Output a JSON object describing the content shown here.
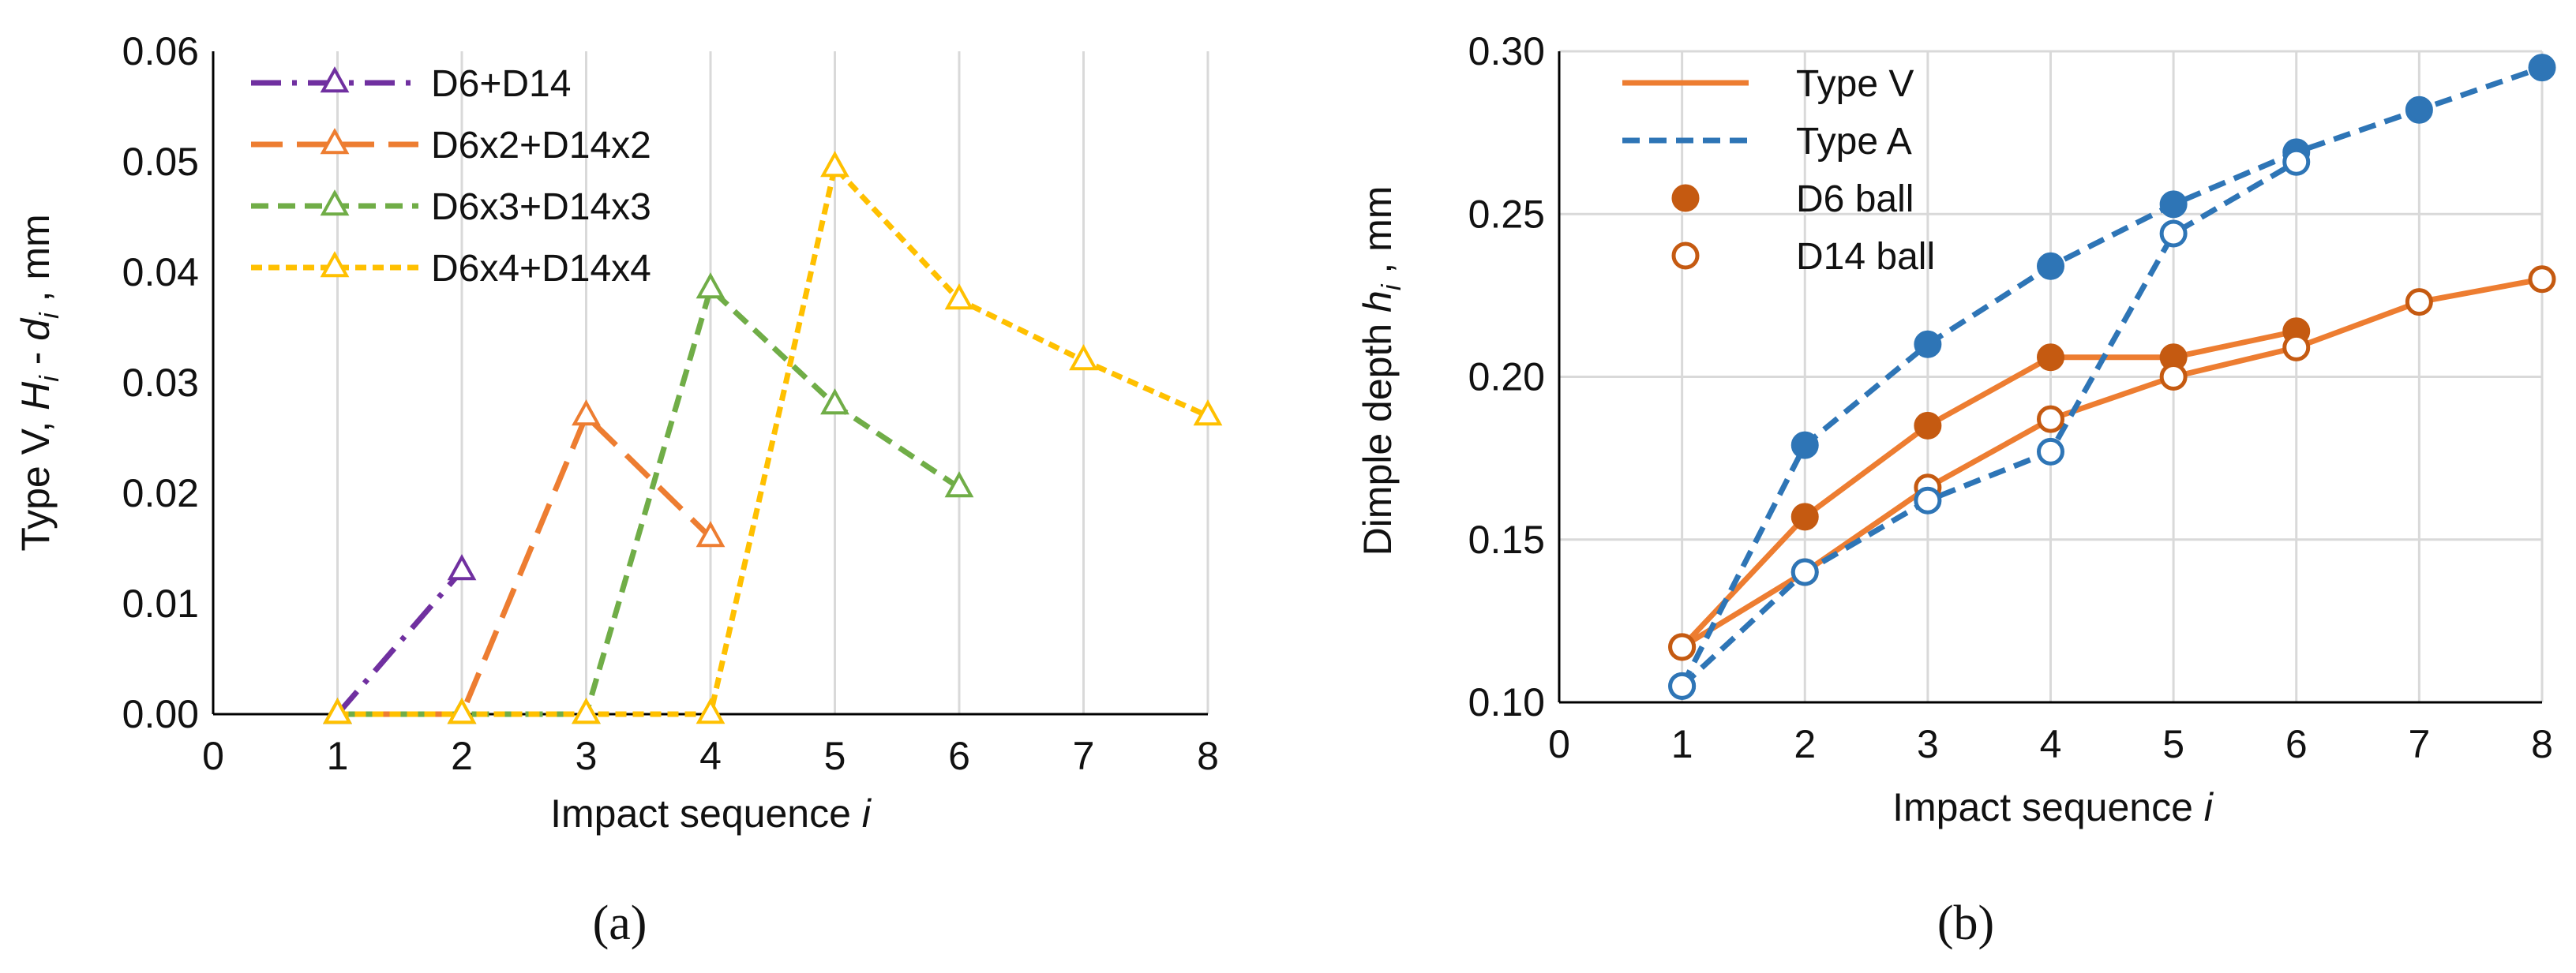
{
  "chart_data": [
    {
      "type": "line",
      "panel_label": "(a)",
      "xlabel_prefix": "Impact sequence ",
      "xlabel_var": "i",
      "ylabel": {
        "p1": "Type V, ",
        "H": "H",
        "i1": "i",
        "mid": " - ",
        "d": "d",
        "i2": "i",
        "unit": " , mm"
      },
      "xlim": [
        0,
        8
      ],
      "ylim": [
        0,
        0.06
      ],
      "x_ticks": [
        "0",
        "1",
        "2",
        "3",
        "4",
        "5",
        "6",
        "7",
        "8"
      ],
      "y_ticks": [
        "0.00",
        "0.01",
        "0.02",
        "0.03",
        "0.04",
        "0.05",
        "0.06"
      ],
      "grid": "vertical",
      "legend_position": "top-left",
      "series": [
        {
          "name": "D6+D14",
          "color": "#7030a0",
          "dash": "dashdot",
          "x": [
            1,
            2
          ],
          "y": [
            0,
            0.013
          ]
        },
        {
          "name": "D6x2+D14x2",
          "color": "#ed7d31",
          "dash": "longdash",
          "x": [
            1,
            2,
            3,
            4
          ],
          "y": [
            0,
            0,
            0.027,
            0.016
          ]
        },
        {
          "name": "D6x3+D14x3",
          "color": "#70ad47",
          "dash": "dash",
          "x": [
            1,
            2,
            3,
            4,
            5,
            6
          ],
          "y": [
            0,
            0,
            0,
            0.0385,
            0.028,
            0.0205
          ]
        },
        {
          "name": "D6x4+D14x4",
          "color": "#ffc000",
          "dash": "shortdash",
          "x": [
            1,
            2,
            3,
            4,
            5,
            6,
            7,
            8
          ],
          "y": [
            0,
            0,
            0,
            0,
            0.0495,
            0.0375,
            0.032,
            0.027
          ]
        }
      ]
    },
    {
      "type": "line",
      "panel_label": "(b)",
      "xlabel_prefix": "Impact sequence ",
      "xlabel_var": "i",
      "ylabel": {
        "p1": "Dimple depth ",
        "h": "h",
        "i": "i",
        "unit": " , mm"
      },
      "xlim": [
        0,
        8
      ],
      "ylim": [
        0.1,
        0.3
      ],
      "x_ticks": [
        "0",
        "1",
        "2",
        "3",
        "4",
        "5",
        "6",
        "7",
        "8"
      ],
      "y_ticks": [
        "0.10",
        "0.15",
        "0.20",
        "0.25",
        "0.30"
      ],
      "grid": "both",
      "legend_position": "top-left",
      "legend": [
        {
          "label": "Type V",
          "kind": "line",
          "color": "#ed7d31",
          "dash": "solid"
        },
        {
          "label": "Type A",
          "kind": "line",
          "color": "#2e75b6",
          "dash": "dash"
        },
        {
          "label": "D6 ball",
          "kind": "marker-filled",
          "color": "#c55a11"
        },
        {
          "label": "D14 ball",
          "kind": "marker-open",
          "color": "#c55a11"
        }
      ],
      "series": [
        {
          "type_label": "Type V",
          "color": "#ed7d31",
          "dash": "solid",
          "marker_color": "#c55a11",
          "x": [
            1,
            1,
            2,
            2,
            3,
            3,
            4,
            4,
            5,
            5,
            6,
            6,
            7,
            8
          ],
          "y": [
            0.117,
            0.117,
            0.157,
            0.14,
            0.185,
            0.166,
            0.206,
            0.187,
            0.206,
            0.2,
            0.214,
            0.209,
            0.223,
            0.23
          ],
          "ball": [
            "D6",
            "D14",
            "D6",
            "D14",
            "D6",
            "D14",
            "D6",
            "D14",
            "D6",
            "D14",
            "D6",
            "D14",
            "D14",
            "D14"
          ]
        },
        {
          "type_label": "Type A",
          "color": "#2e75b6",
          "dash": "dash",
          "marker_color": "#2e75b6",
          "x": [
            1,
            1,
            2,
            2,
            3,
            3,
            4,
            4,
            5,
            5,
            6,
            6,
            7,
            8
          ],
          "y": [
            0.105,
            0.105,
            0.179,
            0.14,
            0.21,
            0.162,
            0.234,
            0.177,
            0.253,
            0.244,
            0.269,
            0.266,
            0.282,
            0.295
          ],
          "ball": [
            "D6",
            "D14",
            "D6",
            "D14",
            "D6",
            "D14",
            "D6",
            "D14",
            "D6",
            "D14",
            "D6",
            "D14",
            "D6",
            "D6"
          ]
        }
      ]
    }
  ]
}
